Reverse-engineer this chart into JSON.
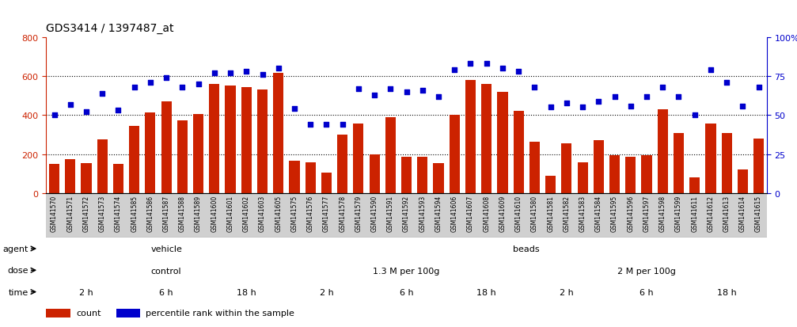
{
  "title": "GDS3414 / 1397487_at",
  "samples": [
    "GSM141570",
    "GSM141571",
    "GSM141572",
    "GSM141573",
    "GSM141574",
    "GSM141585",
    "GSM141586",
    "GSM141587",
    "GSM141588",
    "GSM141589",
    "GSM141600",
    "GSM141601",
    "GSM141602",
    "GSM141603",
    "GSM141605",
    "GSM141575",
    "GSM141576",
    "GSM141577",
    "GSM141578",
    "GSM141579",
    "GSM141590",
    "GSM141591",
    "GSM141592",
    "GSM141593",
    "GSM141594",
    "GSM141606",
    "GSM141607",
    "GSM141608",
    "GSM141609",
    "GSM141610",
    "GSM141580",
    "GSM141581",
    "GSM141582",
    "GSM141583",
    "GSM141584",
    "GSM141595",
    "GSM141596",
    "GSM141597",
    "GSM141598",
    "GSM141599",
    "GSM141611",
    "GSM141612",
    "GSM141613",
    "GSM141614",
    "GSM141615"
  ],
  "counts": [
    150,
    175,
    155,
    275,
    150,
    345,
    415,
    470,
    375,
    405,
    560,
    550,
    545,
    530,
    615,
    165,
    160,
    105,
    300,
    355,
    200,
    390,
    185,
    185,
    155,
    400,
    580,
    560,
    520,
    420,
    265,
    90,
    255,
    160,
    270,
    195,
    185,
    195,
    430,
    310,
    80,
    355,
    310,
    120,
    280
  ],
  "percentiles": [
    50,
    57,
    52,
    64,
    53,
    68,
    71,
    74,
    68,
    70,
    77,
    77,
    78,
    76,
    80,
    54,
    44,
    44,
    44,
    67,
    63,
    67,
    65,
    66,
    62,
    79,
    83,
    83,
    80,
    78,
    68,
    55,
    58,
    55,
    59,
    62,
    56,
    62,
    68,
    62,
    50,
    79,
    71,
    56,
    68
  ],
  "bar_color": "#cc2200",
  "dot_color": "#0000cc",
  "ylim_left": [
    0,
    800
  ],
  "ylim_right": [
    0,
    100
  ],
  "yticks_left": [
    0,
    200,
    400,
    600,
    800
  ],
  "yticks_right": [
    0,
    25,
    50,
    75,
    100
  ],
  "ytick_right_labels": [
    "0",
    "25",
    "50",
    "75",
    "100%"
  ],
  "grid_lines": [
    200,
    400,
    600
  ],
  "agent_groups": [
    {
      "label": "vehicle",
      "start": 0,
      "end": 15,
      "color": "#b0e8a0"
    },
    {
      "label": "beads",
      "start": 15,
      "end": 45,
      "color": "#66cc55"
    }
  ],
  "dose_groups": [
    {
      "label": "control",
      "start": 0,
      "end": 15,
      "color": "#c8c8f0"
    },
    {
      "label": "1.3 M per 100g",
      "start": 15,
      "end": 30,
      "color": "#9090cc"
    },
    {
      "label": "2 M per 100g",
      "start": 30,
      "end": 45,
      "color": "#6666aa"
    }
  ],
  "time_groups": [
    {
      "label": "2 h",
      "start": 0,
      "end": 5,
      "color": "#ffd8d8"
    },
    {
      "label": "6 h",
      "start": 5,
      "end": 10,
      "color": "#ee9999"
    },
    {
      "label": "18 h",
      "start": 10,
      "end": 15,
      "color": "#cc6666"
    },
    {
      "label": "2 h",
      "start": 15,
      "end": 20,
      "color": "#ffd8d8"
    },
    {
      "label": "6 h",
      "start": 20,
      "end": 25,
      "color": "#ee9999"
    },
    {
      "label": "18 h",
      "start": 25,
      "end": 30,
      "color": "#cc6666"
    },
    {
      "label": "2 h",
      "start": 30,
      "end": 35,
      "color": "#ffd8d8"
    },
    {
      "label": "6 h",
      "start": 35,
      "end": 40,
      "color": "#ee9999"
    },
    {
      "label": "18 h",
      "start": 40,
      "end": 45,
      "color": "#cc6666"
    }
  ],
  "legend_items": [
    {
      "label": "count",
      "color": "#cc2200"
    },
    {
      "label": "percentile rank within the sample",
      "color": "#0000cc"
    }
  ],
  "xtick_bg_color": "#d0d0d0",
  "fig_bg": "#ffffff"
}
